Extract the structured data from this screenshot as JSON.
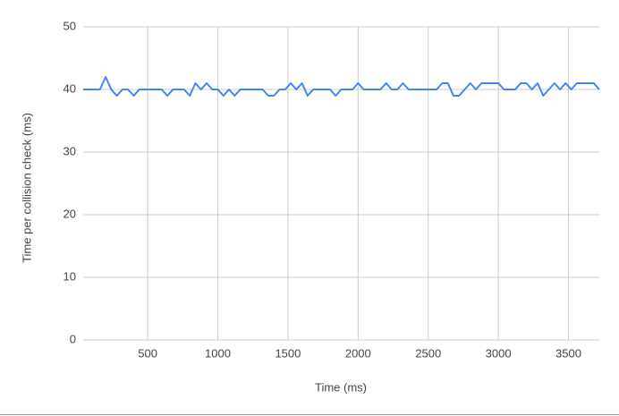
{
  "chart_data": {
    "type": "line",
    "x_label": "Time (ms)",
    "y_label": "Time per collision check (ms)",
    "x": [
      40,
      80,
      120,
      160,
      200,
      240,
      280,
      320,
      360,
      400,
      440,
      480,
      520,
      560,
      600,
      640,
      680,
      720,
      760,
      800,
      840,
      880,
      920,
      960,
      1000,
      1040,
      1080,
      1120,
      1160,
      1200,
      1240,
      1280,
      1320,
      1360,
      1400,
      1440,
      1480,
      1520,
      1560,
      1600,
      1640,
      1680,
      1720,
      1760,
      1800,
      1840,
      1880,
      1920,
      1960,
      2000,
      2040,
      2080,
      2120,
      2160,
      2200,
      2240,
      2280,
      2320,
      2360,
      2400,
      2440,
      2480,
      2520,
      2560,
      2600,
      2640,
      2680,
      2720,
      2760,
      2800,
      2840,
      2880,
      2920,
      2960,
      3000,
      3040,
      3080,
      3120,
      3160,
      3200,
      3240,
      3280,
      3320,
      3360,
      3400,
      3440,
      3480,
      3520,
      3560,
      3600,
      3640,
      3680,
      3720
    ],
    "series": [
      {
        "name": "Time per collision check",
        "color": "#4285f4",
        "values": [
          40,
          40,
          40,
          40,
          42,
          40,
          39,
          40,
          40,
          39,
          40,
          40,
          40,
          40,
          40,
          39,
          40,
          40,
          40,
          39,
          41,
          40,
          41,
          40,
          40,
          39,
          40,
          39,
          40,
          40,
          40,
          40,
          40,
          39,
          39,
          40,
          40,
          41,
          40,
          41,
          39,
          40,
          40,
          40,
          40,
          39,
          40,
          40,
          40,
          41,
          40,
          40,
          40,
          40,
          41,
          40,
          40,
          41,
          40,
          40,
          40,
          40,
          40,
          40,
          41,
          41,
          39,
          39,
          40,
          41,
          40,
          41,
          41,
          41,
          41,
          40,
          40,
          40,
          41,
          41,
          40,
          41,
          39,
          40,
          41,
          40,
          41,
          40,
          41,
          41,
          41,
          41,
          40
        ]
      }
    ],
    "xlim": [
      40,
      3720
    ],
    "xticks": [
      500,
      1000,
      1500,
      2000,
      2500,
      3000,
      3500
    ],
    "ylim": [
      0,
      50
    ],
    "yticks": [
      0,
      10,
      20,
      30,
      40,
      50
    ],
    "grid": true
  }
}
